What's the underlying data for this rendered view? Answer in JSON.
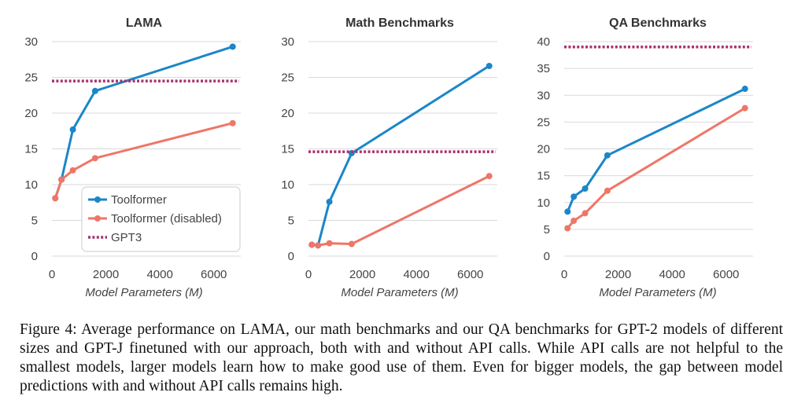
{
  "caption": "Figure 4: Average performance on LAMA, our math benchmarks and our QA benchmarks for GPT-2 models of different sizes and GPT-J finetuned with our approach, both with and without API calls. While API calls are not helpful to the smallest models, larger models learn how to make good use of them. Even for bigger models, the gap between model predictions with and without API calls remains high.",
  "colors": {
    "toolformer": "#1b86c9",
    "disabled": "#ee7668",
    "gpt3": "#a6336f"
  },
  "legend": [
    "Toolformer",
    "Toolformer (disabled)",
    "GPT3"
  ],
  "chart_data": [
    {
      "type": "line",
      "title": "LAMA",
      "xlabel": "Model Parameters (M)",
      "ylabel": "",
      "xlim": [
        0,
        7000
      ],
      "ylim": [
        0,
        30
      ],
      "xticks": [
        0,
        2000,
        4000,
        6000
      ],
      "yticks": [
        0,
        5,
        10,
        15,
        20,
        25,
        30
      ],
      "grid": true,
      "legend_position": "bottom-right",
      "series": [
        {
          "name": "Toolformer",
          "x": [
            124,
            355,
            775,
            1600,
            6700
          ],
          "y": [
            8.1,
            10.7,
            17.7,
            23.1,
            29.3
          ]
        },
        {
          "name": "Toolformer (disabled)",
          "x": [
            124,
            355,
            775,
            1600,
            6700
          ],
          "y": [
            8.1,
            10.7,
            12.0,
            13.7,
            18.6
          ]
        },
        {
          "name": "GPT3",
          "x": [
            0,
            7000
          ],
          "y": [
            24.5,
            24.5
          ],
          "dashed": true
        }
      ]
    },
    {
      "type": "line",
      "title": "Math Benchmarks",
      "xlabel": "Model Parameters (M)",
      "ylabel": "",
      "xlim": [
        0,
        7000
      ],
      "ylim": [
        0,
        30
      ],
      "xticks": [
        0,
        2000,
        4000,
        6000
      ],
      "yticks": [
        0,
        5,
        10,
        15,
        20,
        25,
        30
      ],
      "grid": true,
      "series": [
        {
          "name": "Toolformer",
          "x": [
            124,
            355,
            775,
            1600,
            6700
          ],
          "y": [
            1.6,
            1.5,
            7.6,
            14.4,
            26.6
          ]
        },
        {
          "name": "Toolformer (disabled)",
          "x": [
            124,
            355,
            775,
            1600,
            6700
          ],
          "y": [
            1.6,
            1.5,
            1.8,
            1.7,
            11.2
          ]
        },
        {
          "name": "GPT3",
          "x": [
            0,
            7000
          ],
          "y": [
            14.6,
            14.6
          ],
          "dashed": true
        }
      ]
    },
    {
      "type": "line",
      "title": "QA Benchmarks",
      "xlabel": "Model Parameters (M)",
      "ylabel": "",
      "xlim": [
        0,
        7000
      ],
      "ylim": [
        0,
        40
      ],
      "xticks": [
        0,
        2000,
        4000,
        6000
      ],
      "yticks": [
        0,
        5,
        10,
        15,
        20,
        25,
        30,
        35,
        40
      ],
      "grid": true,
      "series": [
        {
          "name": "Toolformer",
          "x": [
            124,
            355,
            775,
            1600,
            6700
          ],
          "y": [
            8.3,
            11.1,
            12.6,
            18.8,
            31.2
          ]
        },
        {
          "name": "Toolformer (disabled)",
          "x": [
            124,
            355,
            775,
            1600,
            6700
          ],
          "y": [
            5.2,
            6.6,
            8.0,
            12.2,
            27.6
          ]
        },
        {
          "name": "GPT3",
          "x": [
            0,
            7000
          ],
          "y": [
            39.0,
            39.0
          ],
          "dashed": true
        }
      ]
    }
  ]
}
